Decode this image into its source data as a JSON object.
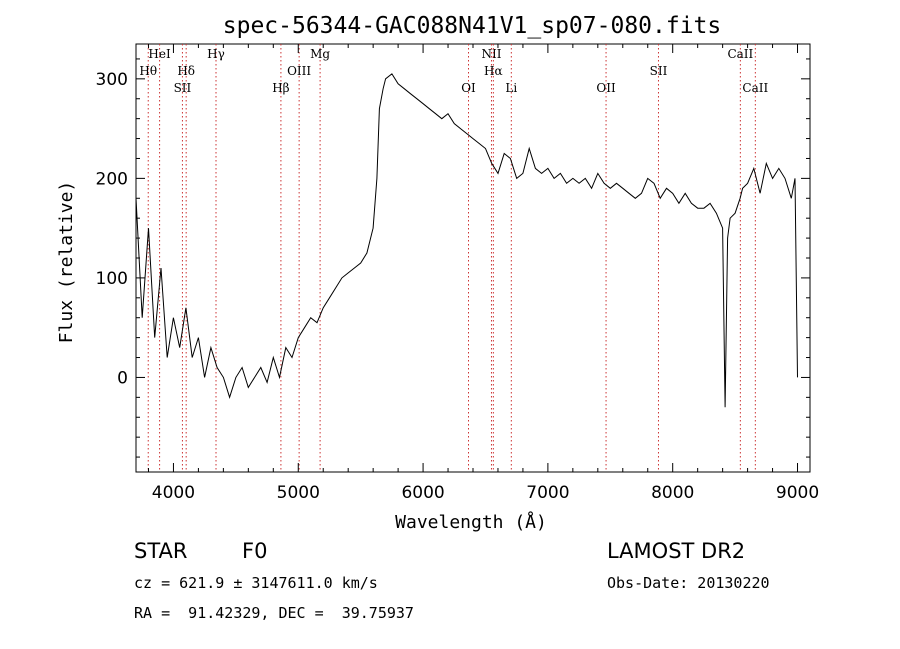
{
  "chart_data": {
    "type": "line",
    "title": "spec-56344-GAC088N41V1_sp07-080.fits",
    "xlabel": "Wavelength (Å)",
    "ylabel": "Flux (relative)",
    "xlim": [
      3700,
      9100
    ],
    "ylim": [
      -95,
      335
    ],
    "x_ticks": [
      4000,
      5000,
      6000,
      7000,
      8000,
      9000
    ],
    "x_tick_labels": [
      "4000",
      "5000",
      "6000",
      "7000",
      "8000",
      "9000"
    ],
    "y_ticks": [
      0,
      100,
      200,
      300
    ],
    "y_tick_labels": [
      "0",
      "100",
      "200",
      "300"
    ],
    "grid": false,
    "series": [
      {
        "x": [
          3700,
          3750,
          3800,
          3850,
          3900,
          3950,
          4000,
          4050,
          4100,
          4150,
          4200,
          4250,
          4300,
          4350,
          4400,
          4450,
          4500,
          4550,
          4600,
          4650,
          4700,
          4750,
          4800,
          4850,
          4900,
          4950,
          5000,
          5050,
          5100,
          5150,
          5200,
          5250,
          5300,
          5350,
          5400,
          5450,
          5500,
          5550,
          5600,
          5630,
          5650,
          5680,
          5700,
          5750,
          5800,
          5850,
          5900,
          5950,
          6000,
          6050,
          6100,
          6150,
          6200,
          6250,
          6300,
          6350,
          6400,
          6450,
          6500,
          6550,
          6600,
          6650,
          6700,
          6750,
          6800,
          6850,
          6900,
          6950,
          7000,
          7050,
          7100,
          7150,
          7200,
          7250,
          7300,
          7350,
          7400,
          7450,
          7500,
          7550,
          7600,
          7650,
          7700,
          7750,
          7800,
          7850,
          7900,
          7950,
          8000,
          8050,
          8100,
          8150,
          8200,
          8250,
          8300,
          8350,
          8400,
          8420,
          8440,
          8460,
          8500,
          8540,
          8560,
          8600,
          8650,
          8700,
          8750,
          8800,
          8850,
          8900,
          8950,
          8980,
          9000
        ],
        "y": [
          180,
          60,
          150,
          40,
          110,
          20,
          60,
          30,
          70,
          20,
          40,
          0,
          30,
          10,
          0,
          -20,
          0,
          10,
          -10,
          0,
          10,
          -5,
          20,
          0,
          30,
          20,
          40,
          50,
          60,
          55,
          70,
          80,
          90,
          100,
          105,
          110,
          115,
          125,
          150,
          200,
          270,
          290,
          300,
          305,
          295,
          290,
          285,
          280,
          275,
          270,
          265,
          260,
          265,
          255,
          250,
          245,
          240,
          235,
          230,
          215,
          205,
          225,
          220,
          200,
          205,
          230,
          210,
          205,
          210,
          200,
          205,
          195,
          200,
          195,
          200,
          190,
          205,
          195,
          190,
          195,
          190,
          185,
          180,
          185,
          200,
          195,
          180,
          190,
          185,
          175,
          185,
          175,
          170,
          170,
          175,
          165,
          150,
          -30,
          140,
          160,
          165,
          180,
          190,
          195,
          210,
          185,
          215,
          200,
          210,
          200,
          180,
          200,
          0
        ]
      }
    ],
    "lines": [
      {
        "label": "Hθ",
        "x": 3798
      },
      {
        "label": "HeI",
        "x": 3889
      },
      {
        "label": "SII",
        "x": 4072
      },
      {
        "label": "Hδ",
        "x": 4102
      },
      {
        "label": "Hγ",
        "x": 4341
      },
      {
        "label": "Hβ",
        "x": 4861
      },
      {
        "label": "OIII",
        "x": 5007
      },
      {
        "label": "Mg",
        "x": 5175
      },
      {
        "label": "OI",
        "x": 6364
      },
      {
        "label": "NII",
        "x": 6548
      },
      {
        "label": "Hα",
        "x": 6563
      },
      {
        "label": "Li",
        "x": 6707
      },
      {
        "label": "OII",
        "x": 7466
      },
      {
        "label": "SII",
        "x": 7886
      },
      {
        "label": "CaII",
        "x": 8542
      },
      {
        "label": "CaII",
        "x": 8662
      }
    ],
    "line_color": "#cc3333"
  },
  "footer": {
    "class": "STAR",
    "subclass": "F0",
    "survey": "LAMOST DR2",
    "cz": "cz = 621.9 ± 3147611.0 km/s",
    "obs_date": "Obs-Date: 20130220",
    "coords": "RA =  91.42329, DEC =  39.75937"
  }
}
